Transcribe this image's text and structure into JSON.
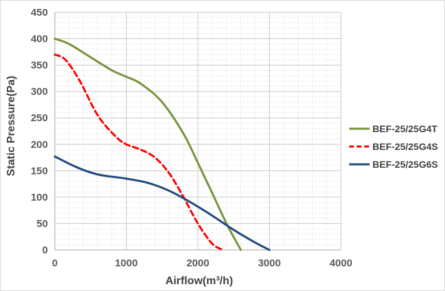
{
  "chart_data": {
    "type": "line",
    "title": "",
    "xlabel": "Airflow(m³/h)",
    "ylabel": "Static Pressure(Pa)",
    "xlim": [
      0,
      4000
    ],
    "ylim": [
      0,
      450
    ],
    "x_ticks": [
      0,
      1000,
      2000,
      3000,
      4000
    ],
    "y_ticks": [
      0,
      50,
      100,
      150,
      200,
      250,
      300,
      350,
      400,
      450
    ],
    "grid": true,
    "legend_position": "right",
    "series": [
      {
        "name": "BEF-25/25G4T",
        "color": "#77933c",
        "dash": "solid",
        "points": [
          [
            0,
            400
          ],
          [
            200,
            390
          ],
          [
            500,
            365
          ],
          [
            800,
            340
          ],
          [
            1000,
            328
          ],
          [
            1200,
            315
          ],
          [
            1500,
            280
          ],
          [
            1800,
            220
          ],
          [
            2000,
            165
          ],
          [
            2200,
            108
          ],
          [
            2400,
            50
          ],
          [
            2600,
            0
          ]
        ]
      },
      {
        "name": "BEF-25/25G4S",
        "color": "#ff0000",
        "dash": "dashed",
        "points": [
          [
            0,
            370
          ],
          [
            150,
            360
          ],
          [
            350,
            320
          ],
          [
            600,
            255
          ],
          [
            850,
            215
          ],
          [
            1000,
            200
          ],
          [
            1200,
            190
          ],
          [
            1400,
            175
          ],
          [
            1600,
            145
          ],
          [
            1800,
            100
          ],
          [
            2000,
            50
          ],
          [
            2200,
            12
          ],
          [
            2350,
            0
          ]
        ]
      },
      {
        "name": "BEF-25/25G6S",
        "color": "#1f497d",
        "dash": "solid",
        "points": [
          [
            0,
            177
          ],
          [
            300,
            157
          ],
          [
            600,
            143
          ],
          [
            1000,
            135
          ],
          [
            1300,
            127
          ],
          [
            1600,
            112
          ],
          [
            1900,
            90
          ],
          [
            2200,
            65
          ],
          [
            2500,
            38
          ],
          [
            2800,
            14
          ],
          [
            3000,
            0
          ]
        ]
      }
    ]
  }
}
